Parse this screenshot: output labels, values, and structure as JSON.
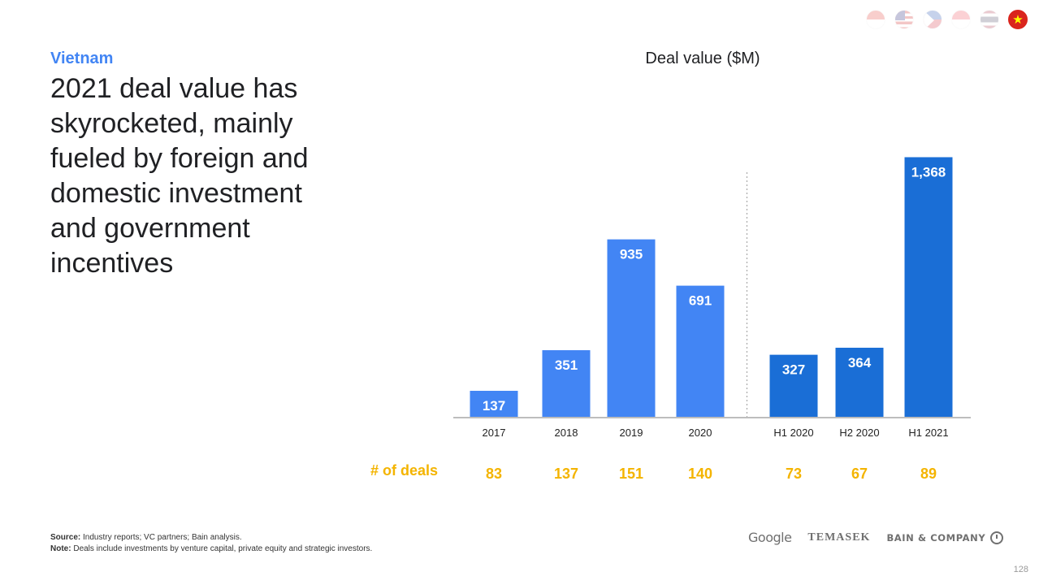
{
  "header": {
    "flags": [
      {
        "country": "Indonesia",
        "icon": "indonesia-flag-icon",
        "active": false
      },
      {
        "country": "Malaysia",
        "icon": "malaysia-flag-icon",
        "active": false
      },
      {
        "country": "Philippines",
        "icon": "philippines-flag-icon",
        "active": false
      },
      {
        "country": "Singapore",
        "icon": "singapore-flag-icon",
        "active": false
      },
      {
        "country": "Thailand",
        "icon": "thailand-flag-icon",
        "active": false
      },
      {
        "country": "Vietnam",
        "icon": "vietnam-flag-icon",
        "active": true
      }
    ]
  },
  "slide": {
    "country": "Vietnam",
    "headline": "2021 deal value has skyrocketed, mainly fueled by foreign and domestic investment and government incentives",
    "page_number": "128"
  },
  "chart_data": {
    "type": "bar",
    "title": "Deal value ($M)",
    "xlabel": "",
    "ylabel": "",
    "ylim": [
      0,
      1400
    ],
    "grid": false,
    "divider_after_category": "2020",
    "categories": [
      "2017",
      "2018",
      "2019",
      "2020",
      "H1 2020",
      "H2 2020",
      "H1 2021"
    ],
    "values": [
      137,
      351,
      935,
      691,
      327,
      364,
      1368
    ],
    "value_labels": [
      "137",
      "351",
      "935",
      "691",
      "327",
      "364",
      "1,368"
    ],
    "bar_colors": [
      "#4285f4",
      "#4285f4",
      "#4285f4",
      "#4285f4",
      "#1a6ed6",
      "#1a6ed6",
      "#1a6ed6"
    ],
    "deals": {
      "label": "# of deals",
      "values": [
        "83",
        "137",
        "151",
        "140",
        "73",
        "67",
        "89"
      ],
      "color": "#f4b400"
    },
    "axis_color": "#bdbdbd"
  },
  "footer": {
    "source_label": "Source:",
    "source_text": " Industry reports; VC partners; Bain analysis.",
    "note_label": "Note:",
    "note_text": " Deals include investments by venture capital, private equity and strategic investors.",
    "logos": {
      "google": "Google",
      "temasek": "TEMASEK",
      "bain": "BAIN & COMPANY"
    }
  }
}
